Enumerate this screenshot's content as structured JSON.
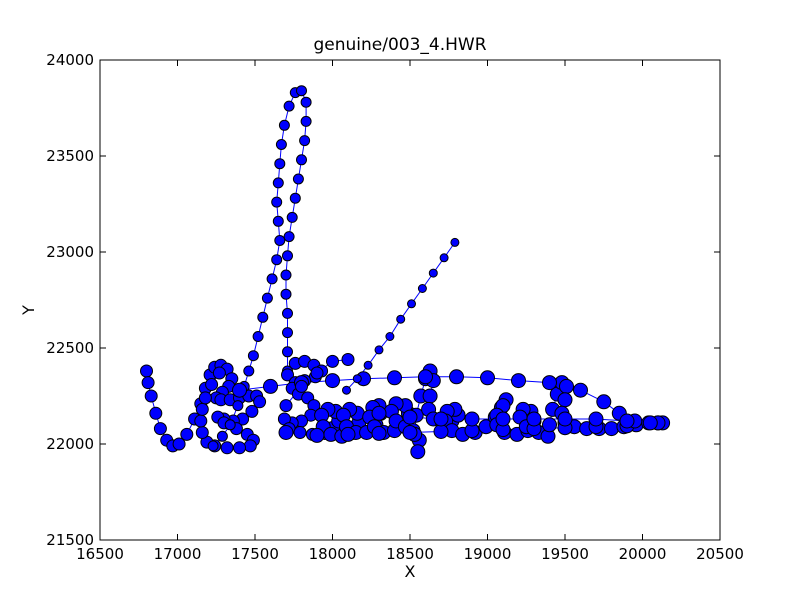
{
  "chart_data": {
    "type": "scatter",
    "title": "genuine/003_4.HWR",
    "xlabel": "X",
    "ylabel": "Y",
    "xlim": [
      16500,
      20500
    ],
    "ylim": [
      21500,
      24000
    ],
    "xticks": [
      "16500",
      "17000",
      "17500",
      "18000",
      "18500",
      "19000",
      "19500",
      "20000",
      "20500"
    ],
    "yticks": [
      "21500",
      "22000",
      "22500",
      "23000",
      "23500",
      "24000"
    ],
    "grid": false,
    "marker_color": "#0000ff",
    "edge_color": "#000000",
    "line_color": "#0000ff",
    "series": [
      {
        "points": [
          [
            16800,
            22380
          ],
          [
            16810,
            22320
          ],
          [
            16830,
            22250
          ],
          [
            16860,
            22160
          ],
          [
            16890,
            22080
          ],
          [
            16930,
            22020
          ],
          [
            16970,
            21990
          ],
          [
            17010,
            22000
          ],
          [
            17060,
            22050
          ],
          [
            17110,
            22130
          ],
          [
            17150,
            22210
          ],
          [
            17180,
            22290
          ],
          [
            17210,
            22360
          ],
          [
            17240,
            22400
          ],
          [
            17280,
            22410
          ],
          [
            17320,
            22390
          ],
          [
            17350,
            22340
          ],
          [
            17330,
            22300
          ],
          [
            17290,
            22270
          ],
          [
            17250,
            22240
          ],
          [
            17280,
            22230
          ],
          [
            17340,
            22230
          ],
          [
            17400,
            22240
          ],
          [
            17460,
            22250
          ],
          [
            17510,
            22250
          ],
          [
            17530,
            22220
          ],
          [
            17480,
            22170
          ],
          [
            17420,
            22130
          ],
          [
            17360,
            22120
          ],
          [
            17300,
            22130
          ],
          [
            17260,
            22140
          ],
          [
            17300,
            22110
          ],
          [
            17380,
            22080
          ],
          [
            17450,
            22050
          ],
          [
            17490,
            22020
          ],
          [
            17470,
            21990
          ],
          [
            17400,
            21980
          ],
          [
            17320,
            21980
          ],
          [
            17240,
            21990
          ],
          [
            17190,
            22010
          ],
          [
            17160,
            22060
          ],
          [
            17150,
            22120
          ],
          [
            17160,
            22180
          ],
          [
            17180,
            22240
          ],
          [
            17220,
            22310
          ],
          [
            17270,
            22370
          ]
        ]
      },
      {
        "points": [
          [
            17230,
            21990
          ],
          [
            17290,
            22040
          ],
          [
            17340,
            22100
          ],
          [
            17390,
            22200
          ],
          [
            17430,
            22300
          ],
          [
            17460,
            22380
          ],
          [
            17490,
            22460
          ],
          [
            17520,
            22560
          ],
          [
            17550,
            22660
          ],
          [
            17580,
            22760
          ],
          [
            17610,
            22860
          ],
          [
            17640,
            22960
          ],
          [
            17660,
            23060
          ],
          [
            17650,
            23160
          ],
          [
            17640,
            23260
          ],
          [
            17650,
            23360
          ],
          [
            17660,
            23460
          ],
          [
            17670,
            23560
          ],
          [
            17690,
            23660
          ],
          [
            17720,
            23760
          ],
          [
            17760,
            23830
          ],
          [
            17800,
            23840
          ],
          [
            17830,
            23780
          ],
          [
            17830,
            23680
          ],
          [
            17820,
            23580
          ],
          [
            17800,
            23480
          ],
          [
            17780,
            23380
          ],
          [
            17760,
            23280
          ],
          [
            17740,
            23180
          ],
          [
            17720,
            23080
          ],
          [
            17710,
            22980
          ],
          [
            17700,
            22880
          ],
          [
            17700,
            22780
          ],
          [
            17710,
            22680
          ],
          [
            17710,
            22580
          ],
          [
            17710,
            22480
          ],
          [
            17710,
            22380
          ]
        ]
      },
      {
        "points": [
          [
            17710,
            22360
          ],
          [
            17760,
            22420
          ],
          [
            17820,
            22430
          ],
          [
            17880,
            22410
          ],
          [
            17930,
            22380
          ],
          [
            17890,
            22350
          ],
          [
            17820,
            22330
          ],
          [
            17760,
            22320
          ],
          [
            17740,
            22290
          ],
          [
            17780,
            22260
          ],
          [
            17840,
            22240
          ],
          [
            17880,
            22200
          ],
          [
            17860,
            22150
          ],
          [
            17800,
            22120
          ],
          [
            17740,
            22110
          ],
          [
            17690,
            22130
          ],
          [
            17720,
            22080
          ],
          [
            17790,
            22060
          ],
          [
            17870,
            22050
          ],
          [
            17950,
            22060
          ]
        ]
      },
      {
        "points": [
          [
            17950,
            22060
          ],
          [
            18000,
            22080
          ],
          [
            18040,
            22120
          ],
          [
            18020,
            22170
          ],
          [
            17970,
            22180
          ],
          [
            17930,
            22150
          ],
          [
            17940,
            22090
          ],
          [
            17990,
            22050
          ],
          [
            18060,
            22040
          ],
          [
            18130,
            22060
          ],
          [
            18170,
            22110
          ],
          [
            18160,
            22160
          ],
          [
            18110,
            22180
          ],
          [
            18070,
            22150
          ],
          [
            18090,
            22090
          ],
          [
            18150,
            22060
          ],
          [
            18220,
            22060
          ],
          [
            18280,
            22100
          ],
          [
            18310,
            22160
          ],
          [
            18300,
            22200
          ],
          [
            18260,
            22190
          ],
          [
            18240,
            22140
          ],
          [
            18270,
            22090
          ],
          [
            18330,
            22060
          ],
          [
            18400,
            22070
          ],
          [
            18460,
            22110
          ],
          [
            18490,
            22160
          ],
          [
            18470,
            22200
          ],
          [
            18410,
            22210
          ],
          [
            18380,
            22170
          ],
          [
            18410,
            22120
          ],
          [
            18470,
            22090
          ],
          [
            18520,
            22070
          ],
          [
            18560,
            22020
          ],
          [
            18550,
            21960
          ],
          [
            18530,
            22050
          ],
          [
            18540,
            22150
          ],
          [
            18570,
            22250
          ],
          [
            18600,
            22340
          ],
          [
            18630,
            22380
          ],
          [
            18650,
            22330
          ],
          [
            18630,
            22250
          ],
          [
            18620,
            22180
          ],
          [
            18650,
            22130
          ],
          [
            18710,
            22110
          ],
          [
            18770,
            22120
          ],
          [
            18810,
            22150
          ],
          [
            18790,
            22180
          ],
          [
            18740,
            22170
          ],
          [
            18730,
            22120
          ],
          [
            18770,
            22070
          ],
          [
            18840,
            22050
          ],
          [
            18920,
            22060
          ],
          [
            18990,
            22090
          ],
          [
            19050,
            22140
          ],
          [
            19090,
            22190
          ],
          [
            19120,
            22230
          ],
          [
            19100,
            22200
          ],
          [
            19060,
            22150
          ],
          [
            19060,
            22100
          ],
          [
            19110,
            22060
          ],
          [
            19190,
            22050
          ],
          [
            19260,
            22070
          ],
          [
            19300,
            22120
          ],
          [
            19280,
            22170
          ],
          [
            19230,
            22180
          ],
          [
            19210,
            22140
          ],
          [
            19250,
            22090
          ],
          [
            19330,
            22060
          ],
          [
            19390,
            22040
          ],
          [
            19400,
            22100
          ],
          [
            19420,
            22180
          ],
          [
            19450,
            22260
          ],
          [
            19480,
            22320
          ],
          [
            19510,
            22300
          ],
          [
            19500,
            22230
          ],
          [
            19480,
            22160
          ],
          [
            19500,
            22110
          ],
          [
            19560,
            22090
          ],
          [
            19640,
            22080
          ],
          [
            19720,
            22080
          ],
          [
            19800,
            22080
          ],
          [
            19880,
            22090
          ],
          [
            19960,
            22100
          ],
          [
            20040,
            22110
          ],
          [
            20100,
            22110
          ],
          [
            20130,
            22110
          ]
        ]
      },
      {
        "points": [
          [
            17700,
            22060
          ],
          [
            17900,
            22045
          ],
          [
            18100,
            22050
          ],
          [
            18300,
            22055
          ],
          [
            18500,
            22060
          ],
          [
            18700,
            22065
          ],
          [
            18900,
            22070
          ],
          [
            19100,
            22075
          ],
          [
            19300,
            22080
          ],
          [
            19500,
            22085
          ],
          [
            19700,
            22090
          ],
          [
            19900,
            22095
          ],
          [
            20100,
            22110
          ]
        ]
      },
      {
        "points": [
          [
            17400,
            22280
          ],
          [
            17600,
            22300
          ],
          [
            17800,
            22320
          ],
          [
            18000,
            22330
          ],
          [
            18200,
            22340
          ],
          [
            18400,
            22345
          ],
          [
            18600,
            22350
          ],
          [
            18800,
            22350
          ],
          [
            19000,
            22345
          ],
          [
            19200,
            22330
          ],
          [
            19400,
            22320
          ],
          [
            19600,
            22280
          ],
          [
            19750,
            22220
          ],
          [
            19850,
            22160
          ],
          [
            19950,
            22120
          ],
          [
            20050,
            22110
          ]
        ]
      },
      {
        "points": [
          [
            18300,
            22160
          ],
          [
            18500,
            22140
          ],
          [
            18700,
            22130
          ],
          [
            18900,
            22130
          ],
          [
            19100,
            22130
          ],
          [
            19300,
            22130
          ],
          [
            19500,
            22130
          ],
          [
            19700,
            22130
          ],
          [
            19900,
            22120
          ]
        ]
      },
      {
        "points": [
          [
            17700,
            22200
          ],
          [
            17800,
            22300
          ],
          [
            17900,
            22370
          ],
          [
            18000,
            22430
          ],
          [
            18100,
            22440
          ]
        ]
      },
      {
        "points": [
          [
            18090,
            22280
          ],
          [
            18160,
            22340
          ],
          [
            18230,
            22410
          ],
          [
            18300,
            22490
          ],
          [
            18370,
            22560
          ],
          [
            18440,
            22650
          ],
          [
            18510,
            22730
          ],
          [
            18580,
            22810
          ],
          [
            18650,
            22890
          ],
          [
            18720,
            22970
          ],
          [
            18790,
            23050
          ]
        ]
      }
    ]
  }
}
